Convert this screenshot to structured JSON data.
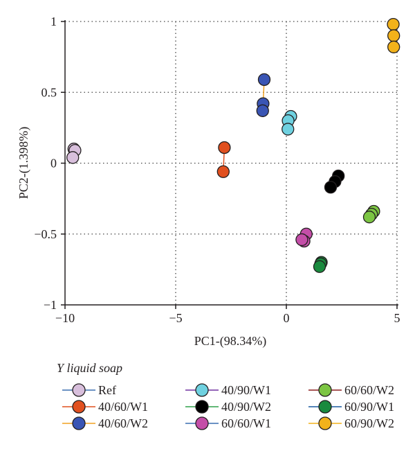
{
  "chart_data": {
    "type": "scatter",
    "xlabel": "PC1-(98.34%)",
    "ylabel": "PC2-(1.398%)",
    "xlim": [
      -10,
      5
    ],
    "ylim": [
      -1,
      1
    ],
    "x_ticks": [
      "−10",
      "−5",
      "0",
      "5"
    ],
    "x_tick_values": [
      -10,
      -5,
      0,
      5
    ],
    "y_ticks": [
      "1",
      "0.5",
      "0",
      "−0.5",
      "−1"
    ],
    "y_tick_values": [
      1,
      0.5,
      0,
      -0.5,
      -1
    ],
    "grid": true,
    "legend_title": "Y liquid soap",
    "legend_placement": "bottom",
    "series": [
      {
        "name": "Ref",
        "color": "#d8bfdc",
        "line_color": "#3a6fb0",
        "points": [
          [
            -9.6,
            0.1
          ],
          [
            -9.55,
            0.09
          ],
          [
            -9.65,
            0.04
          ]
        ]
      },
      {
        "name": "40/60/W1",
        "color": "#e1501f",
        "line_color": "#e1501f",
        "points": [
          [
            -2.8,
            0.11
          ],
          [
            -2.85,
            -0.06
          ]
        ]
      },
      {
        "name": "40/60/W2",
        "color": "#3a55b4",
        "line_color": "#f0a020",
        "points": [
          [
            -1.0,
            0.59
          ],
          [
            -1.05,
            0.42
          ],
          [
            -1.07,
            0.37
          ]
        ]
      },
      {
        "name": "40/90/W1",
        "color": "#6fd1e0",
        "line_color": "#7030a0",
        "points": [
          [
            0.2,
            0.33
          ],
          [
            0.08,
            0.3
          ],
          [
            0.07,
            0.24
          ]
        ]
      },
      {
        "name": "40/90/W2",
        "color": "#000000",
        "line_color": "#2ea04a",
        "points": [
          [
            2.35,
            -0.09
          ],
          [
            2.2,
            -0.13
          ],
          [
            2.0,
            -0.17
          ]
        ]
      },
      {
        "name": "60/60/W1",
        "color": "#c44ea8",
        "line_color": "#3a6fb0",
        "points": [
          [
            0.9,
            -0.5
          ],
          [
            0.8,
            -0.55
          ],
          [
            0.7,
            -0.54
          ]
        ]
      },
      {
        "name": "60/60/W2",
        "color": "#7cc543",
        "line_color": "#8b1e1e",
        "points": [
          [
            3.95,
            -0.34
          ],
          [
            3.85,
            -0.36
          ],
          [
            3.75,
            -0.38
          ]
        ]
      },
      {
        "name": "60/90/W1",
        "color": "#1a8a3e",
        "line_color": "#1a5aa0",
        "points": [
          [
            1.58,
            -0.7
          ],
          [
            1.55,
            -0.71
          ],
          [
            1.5,
            -0.73
          ]
        ]
      },
      {
        "name": "60/90/W2",
        "color": "#f2b21b",
        "line_color": "#f2b21b",
        "points": [
          [
            4.83,
            0.98
          ],
          [
            4.85,
            0.9
          ],
          [
            4.85,
            0.82
          ]
        ]
      }
    ]
  }
}
